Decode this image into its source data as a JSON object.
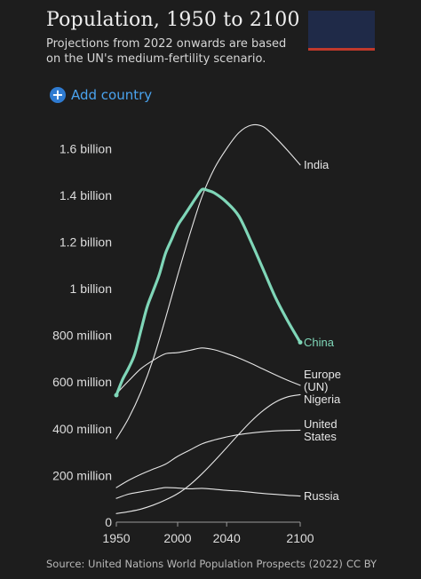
{
  "header": {
    "title": "Population, 1950 to 2100",
    "subtitle": "Projections from 2022 onwards are based on the UN's medium-fertility scenario."
  },
  "controls": {
    "add_country_label": "Add country"
  },
  "footer": {
    "source": "Source: United Nations World Population Prospects (2022)",
    "license": "CC BY"
  },
  "chart_data": {
    "type": "line",
    "title": "Population, 1950 to 2100",
    "xlim": [
      1950,
      2100
    ],
    "ylim": [
      0,
      1700000000
    ],
    "x_ticks": [
      1950,
      2000,
      2040,
      2100
    ],
    "x_tick_labels": [
      "1950",
      "2000",
      "2040",
      "2100"
    ],
    "y_ticks": [
      0,
      200000000,
      400000000,
      600000000,
      800000000,
      1000000000,
      1200000000,
      1400000000,
      1600000000
    ],
    "y_tick_labels": [
      "0",
      "200 million",
      "400 million",
      "600 million",
      "800 million",
      "1 billion",
      "1.2 billion",
      "1.4 billion",
      "1.6 billion"
    ],
    "series": [
      {
        "name": "India",
        "label_lines": [
          "India"
        ],
        "highlight": false,
        "color": "#e6e6e6",
        "x": [
          1950,
          1960,
          1970,
          1980,
          1990,
          2000,
          2010,
          2020,
          2030,
          2040,
          2050,
          2060,
          2070,
          2080,
          2090,
          2100
        ],
        "y": [
          357000000,
          445000000,
          557000000,
          697000000,
          871000000,
          1057000000,
          1234000000,
          1396000000,
          1515000000,
          1600000000,
          1668000000,
          1700000000,
          1693000000,
          1646000000,
          1590000000,
          1530000000
        ]
      },
      {
        "name": "China",
        "label_lines": [
          "China"
        ],
        "highlight": true,
        "color": "#7fd6b8",
        "x": [
          1950,
          1955,
          1960,
          1965,
          1970,
          1975,
          1980,
          1985,
          1990,
          1995,
          2000,
          2005,
          2010,
          2015,
          2020,
          2025,
          2030,
          2040,
          2050,
          2060,
          2070,
          2080,
          2090,
          2100
        ],
        "y": [
          544000000,
          610000000,
          660000000,
          720000000,
          820000000,
          920000000,
          990000000,
          1060000000,
          1150000000,
          1210000000,
          1270000000,
          1310000000,
          1350000000,
          1390000000,
          1425000000,
          1420000000,
          1410000000,
          1370000000,
          1310000000,
          1200000000,
          1080000000,
          960000000,
          860000000,
          770000000
        ]
      },
      {
        "name": "Europe (UN)",
        "label_lines": [
          "Europe",
          "(UN)"
        ],
        "highlight": false,
        "color": "#e6e6e6",
        "x": [
          1950,
          1960,
          1970,
          1980,
          1990,
          2000,
          2010,
          2020,
          2030,
          2040,
          2050,
          2060,
          2070,
          2080,
          2090,
          2100
        ],
        "y": [
          550000000,
          605000000,
          657000000,
          693000000,
          721000000,
          726000000,
          736000000,
          746000000,
          738000000,
          722000000,
          703000000,
          680000000,
          655000000,
          630000000,
          607000000,
          586000000
        ]
      },
      {
        "name": "Nigeria",
        "label_lines": [
          "Nigeria"
        ],
        "highlight": false,
        "color": "#e6e6e6",
        "x": [
          1950,
          1960,
          1970,
          1980,
          1990,
          2000,
          2010,
          2020,
          2030,
          2040,
          2050,
          2060,
          2070,
          2080,
          2090,
          2100
        ],
        "y": [
          37000000,
          45000000,
          56000000,
          73000000,
          95000000,
          122000000,
          160000000,
          208000000,
          262000000,
          319000000,
          377000000,
          432000000,
          479000000,
          515000000,
          537000000,
          546000000
        ]
      },
      {
        "name": "United States",
        "label_lines": [
          "United",
          "States"
        ],
        "highlight": false,
        "color": "#e6e6e6",
        "x": [
          1950,
          1960,
          1970,
          1980,
          1990,
          2000,
          2010,
          2020,
          2030,
          2040,
          2050,
          2060,
          2070,
          2080,
          2090,
          2100
        ],
        "y": [
          148000000,
          179000000,
          205000000,
          227000000,
          248000000,
          282000000,
          309000000,
          336000000,
          352000000,
          365000000,
          375000000,
          382000000,
          387000000,
          391000000,
          393000000,
          394000000
        ]
      },
      {
        "name": "Russia",
        "label_lines": [
          "Russia"
        ],
        "highlight": false,
        "color": "#e6e6e6",
        "x": [
          1950,
          1960,
          1970,
          1980,
          1990,
          2000,
          2010,
          2020,
          2030,
          2040,
          2050,
          2060,
          2070,
          2080,
          2090,
          2100
        ],
        "y": [
          102000000,
          120000000,
          130000000,
          139000000,
          148000000,
          146000000,
          143000000,
          145000000,
          141000000,
          136000000,
          133000000,
          128000000,
          123000000,
          119000000,
          115000000,
          112000000
        ]
      }
    ]
  }
}
